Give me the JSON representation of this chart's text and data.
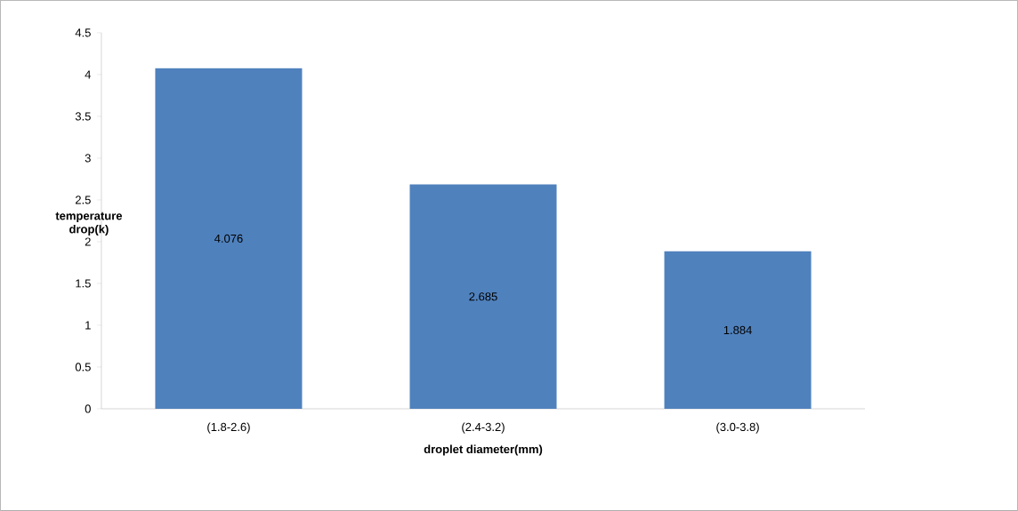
{
  "chart_data": {
    "type": "bar",
    "xlabel": "droplet diameter(mm)",
    "ylabel": "temperature drop(k)",
    "categories": [
      "(1.8-2.6)",
      "(2.4-3.2)",
      "(3.0-3.8)"
    ],
    "values": [
      4.076,
      2.685,
      1.884
    ],
    "color": "#4f81bd",
    "ylim": [
      0,
      4.5
    ],
    "yticks": [
      0,
      0.5,
      1,
      1.5,
      2,
      2.5,
      3,
      3.5,
      4,
      4.5
    ],
    "data_labels": true
  }
}
